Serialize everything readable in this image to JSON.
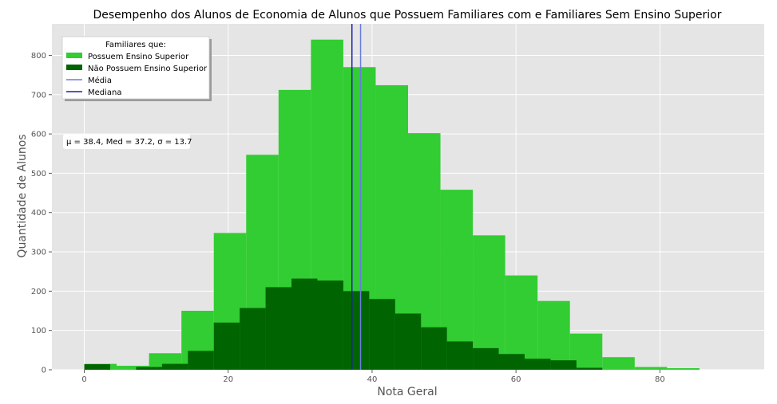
{
  "chart_data": {
    "type": "bar",
    "title": "Desempenho dos Alunos de Economia de Alunos que Possuem Familiares com e Familiares Sem Ensino Superior",
    "xlabel": "Nota Geral",
    "ylabel": "Quantidade de Alunos",
    "xlim": [
      -4.5,
      94.5
    ],
    "ylim": [
      0,
      880
    ],
    "xticks": [
      0,
      20,
      40,
      60,
      80
    ],
    "yticks": [
      0,
      100,
      200,
      300,
      400,
      500,
      600,
      700,
      800
    ],
    "grid": true,
    "series": [
      {
        "name": "Possuem Ensino Superior",
        "color": "#32cd32",
        "bin_edges": [
          0,
          4.5,
          9,
          13.5,
          18,
          22.5,
          27,
          31.5,
          36,
          40.5,
          45,
          49.5,
          54,
          58.5,
          63,
          67.5,
          72,
          76.5,
          81,
          85.5
        ],
        "values": [
          15,
          10,
          42,
          150,
          348,
          547,
          712,
          840,
          770,
          724,
          602,
          458,
          342,
          240,
          175,
          92,
          32,
          7,
          4
        ]
      },
      {
        "name": "Não Possuem Ensino Superior",
        "color": "#006400",
        "bin_edges": [
          0,
          3.6,
          7.2,
          10.8,
          14.4,
          18,
          21.6,
          25.2,
          28.8,
          32.4,
          36,
          39.6,
          43.2,
          46.8,
          50.4,
          54,
          57.6,
          61.2,
          64.8,
          68.4,
          72
        ],
        "values": [
          14,
          0,
          7,
          15,
          48,
          120,
          157,
          210,
          232,
          227,
          200,
          180,
          143,
          108,
          72,
          55,
          40,
          28,
          24,
          5
        ]
      }
    ],
    "lines": [
      {
        "name": "Média",
        "x": 38.4,
        "color": "#6b7ae0"
      },
      {
        "name": "Mediana",
        "x": 37.2,
        "color": "#1f1fb0"
      }
    ],
    "legend": {
      "title": "Familiares que:",
      "position": "top-left"
    },
    "annotation": "μ = 38.4,  Med = 37.2,  σ = 13.7"
  }
}
